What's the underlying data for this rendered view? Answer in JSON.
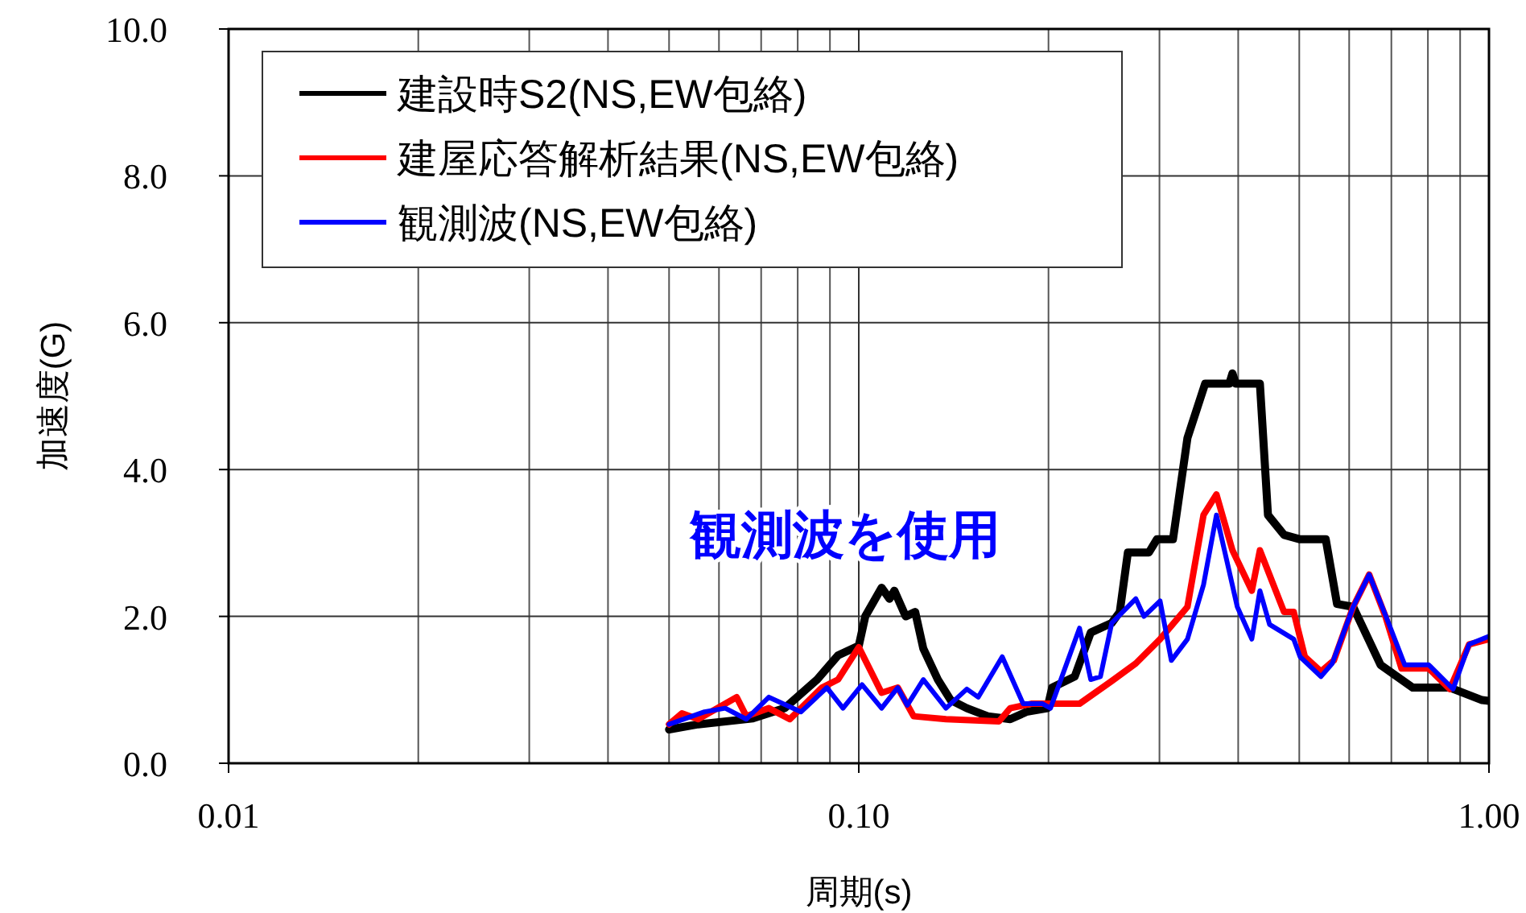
{
  "chart_data": {
    "type": "line",
    "xlabel": "周期(s)",
    "ylabel": "加速度(G)",
    "log": "x",
    "xlim": [
      0.01,
      1.0
    ],
    "xticks": [
      {
        "value": 0.01,
        "label": "0.01"
      },
      {
        "value": 0.1,
        "label": "0.10"
      },
      {
        "value": 1.0,
        "label": "1.00"
      }
    ],
    "ylim": [
      0,
      10
    ],
    "yticks": [
      {
        "value": 0,
        "label": "0.0"
      },
      {
        "value": 2,
        "label": "2.0"
      },
      {
        "value": 4,
        "label": "4.0"
      },
      {
        "value": 6,
        "label": "6.0"
      },
      {
        "value": 8,
        "label": "8.0"
      },
      {
        "value": 10,
        "label": "10.0"
      }
    ],
    "grid": true,
    "legend": "top left",
    "line_style": "solid",
    "marker": "none",
    "annotations": [
      "観測波を使用"
    ],
    "series": [
      {
        "name": "建設時S2(NS,EW包絡)",
        "color": "#000000",
        "x": [
          0.05,
          0.0556,
          0.0679,
          0.0763,
          0.0859,
          0.0927,
          0.1,
          0.1024,
          0.1087,
          0.1119,
          0.1139,
          0.1187,
          0.1229,
          0.1266,
          0.1335,
          0.1399,
          0.1484,
          0.1602,
          0.1739,
          0.1845,
          0.1992,
          0.2027,
          0.2201,
          0.2334,
          0.252,
          0.2595,
          0.2673,
          0.2886,
          0.2972,
          0.3152,
          0.3323,
          0.3545,
          0.3872,
          0.3917,
          0.3964,
          0.433,
          0.446,
          0.473,
          0.5015,
          0.5508,
          0.574,
          0.6088,
          0.673,
          0.757,
          0.867,
          0.975,
          1.0
        ],
        "values": [
          0.46,
          0.53,
          0.61,
          0.75,
          1.14,
          1.47,
          1.6,
          2.0,
          2.39,
          2.24,
          2.35,
          2.0,
          2.06,
          1.56,
          1.14,
          0.86,
          0.75,
          0.64,
          0.6,
          0.7,
          0.75,
          1.03,
          1.18,
          1.78,
          1.91,
          2.06,
          2.87,
          2.87,
          3.05,
          3.05,
          4.43,
          5.17,
          5.17,
          5.31,
          5.17,
          5.17,
          3.38,
          3.11,
          3.05,
          3.05,
          2.17,
          2.13,
          1.34,
          1.03,
          1.03,
          0.86,
          0.85
        ]
      },
      {
        "name": "建屋応答解析結果(NS,EW包絡)",
        "color": "#ff0000",
        "x": [
          0.05,
          0.0524,
          0.0556,
          0.064,
          0.0663,
          0.072,
          0.0777,
          0.0874,
          0.0927,
          0.1,
          0.1087,
          0.1153,
          0.1222,
          0.1375,
          0.1669,
          0.1739,
          0.1878,
          0.224,
          0.252,
          0.2752,
          0.3007,
          0.3323,
          0.3524,
          0.3694,
          0.3917,
          0.4204,
          0.433,
          0.473,
          0.49,
          0.5103,
          0.5412,
          0.5673,
          0.6088,
          0.6456,
          0.685,
          0.7265,
          0.8026,
          0.8668,
          0.9301,
          1.0
        ],
        "values": [
          0.53,
          0.68,
          0.6,
          0.9,
          0.64,
          0.75,
          0.6,
          1.03,
          1.14,
          1.58,
          0.96,
          1.03,
          0.64,
          0.6,
          0.57,
          0.75,
          0.81,
          0.81,
          1.12,
          1.36,
          1.69,
          2.13,
          3.38,
          3.66,
          2.9,
          2.35,
          2.9,
          2.06,
          2.06,
          1.45,
          1.25,
          1.4,
          2.13,
          2.57,
          2.0,
          1.29,
          1.29,
          1.01,
          1.62,
          1.69
        ]
      },
      {
        "name": "観測波(NS,EW包絡)",
        "color": "#0000ff",
        "x": [
          0.05,
          0.0569,
          0.0614,
          0.0663,
          0.072,
          0.081,
          0.089,
          0.0944,
          0.1012,
          0.1087,
          0.1153,
          0.1194,
          0.1266,
          0.1375,
          0.1484,
          0.1547,
          0.1689,
          0.1823,
          0.1957,
          0.2015,
          0.224,
          0.2334,
          0.2418,
          0.252,
          0.2752,
          0.2835,
          0.3007,
          0.3133,
          0.3323,
          0.3524,
          0.3694,
          0.3987,
          0.4204,
          0.433,
          0.4486,
          0.49,
          0.5015,
          0.5412,
          0.564,
          0.6088,
          0.6456,
          0.685,
          0.7351,
          0.8026,
          0.877,
          0.9301,
          1.0
        ],
        "values": [
          0.53,
          0.7,
          0.75,
          0.6,
          0.9,
          0.7,
          1.03,
          0.75,
          1.07,
          0.75,
          1.03,
          0.79,
          1.14,
          0.75,
          1.01,
          0.9,
          1.45,
          0.81,
          0.81,
          0.75,
          1.84,
          1.14,
          1.18,
          1.91,
          2.24,
          2.0,
          2.21,
          1.4,
          1.69,
          2.43,
          3.38,
          2.13,
          1.69,
          2.35,
          1.89,
          1.69,
          1.45,
          1.18,
          1.36,
          2.13,
          2.57,
          2.02,
          1.34,
          1.34,
          1.01,
          1.62,
          1.73
        ]
      }
    ]
  }
}
